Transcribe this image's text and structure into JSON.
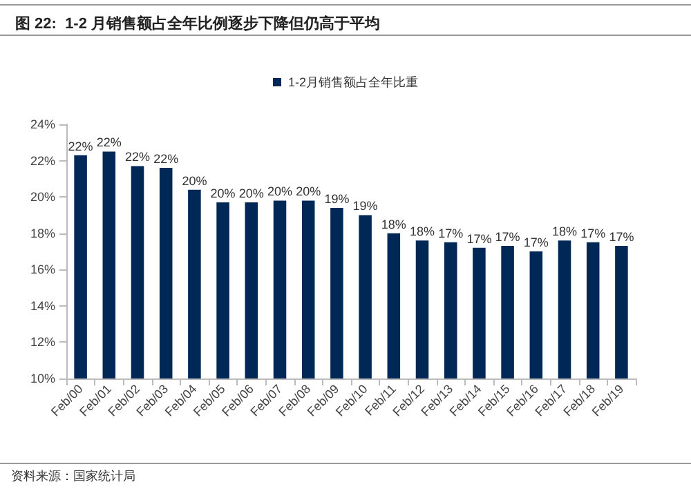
{
  "chart_data": {
    "type": "bar",
    "title": "图 22:  1-2 月销售额占全年比例逐步下降但仍高于平均",
    "categories": [
      "Feb/00",
      "Feb/01",
      "Feb/02",
      "Feb/03",
      "Feb/04",
      "Feb/05",
      "Feb/06",
      "Feb/07",
      "Feb/08",
      "Feb/09",
      "Feb/10",
      "Feb/11",
      "Feb/12",
      "Feb/13",
      "Feb/14",
      "Feb/15",
      "Feb/16",
      "Feb/17",
      "Feb/18",
      "Feb/19"
    ],
    "series": [
      {
        "name": "1-2月销售额占全年比重",
        "color": "#002856",
        "values": [
          22.3,
          22.5,
          21.7,
          21.6,
          20.4,
          19.7,
          19.7,
          19.8,
          19.8,
          19.4,
          19.0,
          18.0,
          17.6,
          17.5,
          17.2,
          17.3,
          17.0,
          17.6,
          17.5,
          17.3
        ],
        "value_labels": [
          "22%",
          "22%",
          "22%",
          "22%",
          "20%",
          "20%",
          "20%",
          "20%",
          "20%",
          "19%",
          "19%",
          "18%",
          "18%",
          "17%",
          "17%",
          "17%",
          "17%",
          "18%",
          "17%",
          "17%"
        ]
      }
    ],
    "ylim": [
      10,
      24
    ],
    "yticks": [
      {
        "value": 10,
        "label": "10%"
      },
      {
        "value": 12,
        "label": "12%"
      },
      {
        "value": 14,
        "label": "14%"
      },
      {
        "value": 16,
        "label": "16%"
      },
      {
        "value": 18,
        "label": "18%"
      },
      {
        "value": 20,
        "label": "20%"
      },
      {
        "value": 22,
        "label": "22%"
      },
      {
        "value": 24,
        "label": "24%"
      }
    ],
    "grid": false,
    "legend": "top",
    "annotations": [
      "资料来源：国家统计局"
    ]
  }
}
